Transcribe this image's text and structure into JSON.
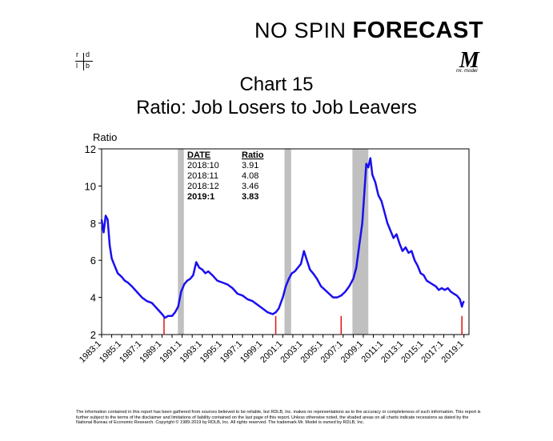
{
  "header": {
    "brand_prefix": "NO SPIN ",
    "brand_suffix": "FORECAST",
    "logo_letters": [
      "r",
      "d",
      "l",
      "b"
    ],
    "mr_model_letter": "M",
    "mr_model_text": "mr. model"
  },
  "title_line1": "Chart 15",
  "title_line2": "Ratio: Job Losers to Job Leavers",
  "colors": {
    "line": "#1a0ff0",
    "recession": "#c0c0c0",
    "marker": "#e01010",
    "brand_arrow": "#2aa64a"
  },
  "chart_data": {
    "type": "line",
    "ylabel": "Ratio",
    "ylim": [
      2,
      12
    ],
    "yticks": [
      2,
      4,
      6,
      8,
      10,
      12
    ],
    "xlim": [
      1983.0,
      2019.5
    ],
    "xtick_labels": [
      "1983:1",
      "1985:1",
      "1987:1",
      "1989:1",
      "1991:1",
      "1993:1",
      "1995:1",
      "1997:1",
      "1999:1",
      "2001:1",
      "2003:1",
      "2005:1",
      "2007:1",
      "2009:1",
      "2011:1",
      "2013:1",
      "2015:1",
      "2017:1",
      "2019:1"
    ],
    "recessions": [
      [
        1990.58,
        1991.17
      ],
      [
        2001.17,
        2001.83
      ],
      [
        2007.92,
        2009.5
      ]
    ],
    "trough_markers": [
      1989.2,
      2000.3,
      2006.8,
      2018.8
    ],
    "series": [
      {
        "x": [
          1983.0,
          1983.2,
          1983.4,
          1983.6,
          1983.8,
          1984.0,
          1984.3,
          1984.6,
          1985.0,
          1985.3,
          1985.6,
          1986.0,
          1986.5,
          1987.0,
          1987.5,
          1988.0,
          1988.5,
          1989.0,
          1989.3,
          1989.6,
          1990.0,
          1990.3,
          1990.6,
          1990.9,
          1991.2,
          1991.5,
          1991.8,
          1992.1,
          1992.4,
          1992.7,
          1993.0,
          1993.3,
          1993.6,
          1994.0,
          1994.5,
          1995.0,
          1995.5,
          1996.0,
          1996.5,
          1997.0,
          1997.5,
          1998.0,
          1998.5,
          1999.0,
          1999.5,
          2000.0,
          2000.3,
          2000.6,
          2001.0,
          2001.3,
          2001.6,
          2001.9,
          2002.2,
          2002.5,
          2002.8,
          2003.1,
          2003.4,
          2003.7,
          2004.0,
          2004.4,
          2004.8,
          2005.2,
          2005.6,
          2006.0,
          2006.4,
          2006.8,
          2007.2,
          2007.6,
          2008.0,
          2008.3,
          2008.6,
          2008.9,
          2009.1,
          2009.3,
          2009.5,
          2009.7,
          2009.9,
          2010.2,
          2010.5,
          2010.8,
          2011.1,
          2011.4,
          2011.7,
          2012.0,
          2012.3,
          2012.6,
          2012.9,
          2013.2,
          2013.5,
          2013.8,
          2014.1,
          2014.4,
          2014.7,
          2015.0,
          2015.3,
          2015.6,
          2015.9,
          2016.2,
          2016.5,
          2016.8,
          2017.1,
          2017.4,
          2017.7,
          2018.0,
          2018.3,
          2018.6,
          2018.8,
          2018.9,
          2019.0
        ],
        "y": [
          8.2,
          7.5,
          8.4,
          8.2,
          6.8,
          6.1,
          5.7,
          5.3,
          5.1,
          4.9,
          4.8,
          4.6,
          4.3,
          4.0,
          3.8,
          3.7,
          3.4,
          3.1,
          2.9,
          3.0,
          3.0,
          3.2,
          3.5,
          4.3,
          4.7,
          4.9,
          5.0,
          5.2,
          5.9,
          5.6,
          5.5,
          5.3,
          5.4,
          5.2,
          4.9,
          4.8,
          4.7,
          4.5,
          4.2,
          4.1,
          3.9,
          3.8,
          3.6,
          3.4,
          3.2,
          3.1,
          3.2,
          3.4,
          4.0,
          4.6,
          5.0,
          5.3,
          5.4,
          5.6,
          5.8,
          6.5,
          6.0,
          5.5,
          5.3,
          5.0,
          4.6,
          4.4,
          4.2,
          4.0,
          4.0,
          4.1,
          4.3,
          4.6,
          5.0,
          5.6,
          6.8,
          8.0,
          9.6,
          11.2,
          11.0,
          11.5,
          10.6,
          10.2,
          9.5,
          9.2,
          8.6,
          8.0,
          7.6,
          7.2,
          7.4,
          6.9,
          6.5,
          6.7,
          6.4,
          6.5,
          6.0,
          5.7,
          5.3,
          5.2,
          4.9,
          4.8,
          4.7,
          4.6,
          4.4,
          4.5,
          4.4,
          4.5,
          4.3,
          4.2,
          4.1,
          3.9,
          3.5,
          3.7,
          3.8
        ]
      }
    ],
    "data_table": {
      "headers": [
        "DATE",
        "Ratio"
      ],
      "rows": [
        [
          "2018:10",
          "3.91"
        ],
        [
          "2018:11",
          "4.08"
        ],
        [
          "2018:12",
          "3.46"
        ],
        [
          "2019:1",
          "3.83"
        ]
      ]
    }
  },
  "disclaimer": "The information contained in this report has been gathered from sources believed to be reliable, but RDLB, Inc. makes no representations as to the accuracy or completeness of such information. This report is further subject to the terms of the disclaimer and limitations of liability contained on the last page of this report. Unless otherwise noted, the shaded areas on all charts indicate recessions as dated by the National Bureau of Economic Research. Copyright © 1989-2019 by RDLB, Inc. All rights reserved. The trademark Mr. Model is owned by RDLB, Inc."
}
